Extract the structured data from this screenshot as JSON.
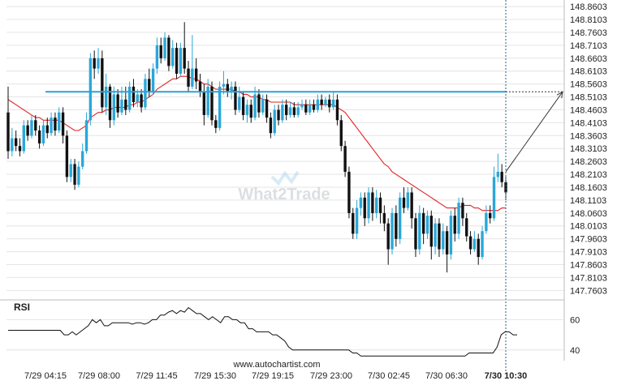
{
  "chart_data": {
    "type": "candlestick",
    "y_ticks": [
      "148.8603",
      "148.8103",
      "148.7603",
      "148.7103",
      "148.6603",
      "148.6103",
      "148.5603",
      "148.5103",
      "148.4603",
      "148.4103",
      "148.3603",
      "148.3103",
      "148.2603",
      "148.2103",
      "148.1603",
      "148.1103",
      "148.0603",
      "148.0103",
      "147.9603",
      "147.9103",
      "147.8603",
      "147.8103",
      "147.7603"
    ],
    "ylim": [
      147.73,
      148.87
    ],
    "x_tick_labels": [
      "7/29 04:15",
      "7/29 08:00",
      "7/29 11:45",
      "7/29 15:30",
      "7/29 19:15",
      "7/29 23:00",
      "7/30 02:45",
      "7/30 06:30",
      "7/30 10:30"
    ],
    "highlighted_x_label": "7/30 10:30",
    "resistance_level": 148.53,
    "projection": {
      "from": 148.22,
      "to": 148.53
    },
    "candles": [
      [
        148.45,
        148.3,
        148.55,
        148.27
      ],
      [
        148.3,
        148.35,
        148.39,
        148.28
      ],
      [
        148.35,
        148.32,
        148.38,
        148.3
      ],
      [
        148.32,
        148.3,
        148.35,
        148.28
      ],
      [
        148.3,
        148.4,
        148.42,
        148.29
      ],
      [
        148.4,
        148.36,
        148.42,
        148.34
      ],
      [
        148.36,
        148.42,
        148.44,
        148.35
      ],
      [
        148.42,
        148.38,
        148.44,
        148.36
      ],
      [
        148.38,
        148.33,
        148.4,
        148.31
      ],
      [
        148.33,
        148.4,
        148.42,
        148.32
      ],
      [
        148.4,
        148.37,
        148.43,
        148.35
      ],
      [
        148.37,
        148.43,
        148.45,
        148.36
      ],
      [
        148.43,
        148.38,
        148.45,
        148.36
      ],
      [
        148.38,
        148.45,
        148.47,
        148.37
      ],
      [
        148.45,
        148.36,
        148.47,
        148.33
      ],
      [
        148.36,
        148.2,
        148.38,
        148.18
      ],
      [
        148.2,
        148.25,
        148.27,
        148.18
      ],
      [
        148.25,
        148.17,
        148.27,
        148.15
      ],
      [
        148.17,
        148.24,
        148.26,
        148.16
      ],
      [
        148.24,
        148.3,
        148.33,
        148.23
      ],
      [
        148.3,
        148.42,
        148.45,
        148.29
      ],
      [
        148.42,
        148.66,
        148.68,
        148.4
      ],
      [
        148.66,
        148.62,
        148.69,
        148.58
      ],
      [
        148.62,
        148.66,
        148.7,
        148.6
      ],
      [
        148.66,
        148.47,
        148.69,
        148.45
      ],
      [
        148.47,
        148.55,
        148.6,
        148.44
      ],
      [
        148.55,
        148.42,
        148.56,
        148.39
      ],
      [
        148.42,
        148.52,
        148.55,
        148.4
      ],
      [
        148.52,
        148.45,
        148.54,
        148.43
      ],
      [
        148.45,
        148.5,
        148.55,
        148.44
      ],
      [
        148.5,
        148.46,
        148.55,
        148.44
      ],
      [
        148.46,
        148.55,
        148.57,
        148.45
      ],
      [
        148.55,
        148.49,
        148.58,
        148.47
      ],
      [
        148.49,
        148.52,
        148.54,
        148.47
      ],
      [
        148.52,
        148.47,
        148.54,
        148.45
      ],
      [
        148.47,
        148.58,
        148.6,
        148.46
      ],
      [
        148.58,
        148.53,
        148.62,
        148.51
      ],
      [
        148.53,
        148.62,
        148.64,
        148.52
      ],
      [
        148.62,
        148.71,
        148.74,
        148.6
      ],
      [
        148.71,
        148.66,
        148.74,
        148.64
      ],
      [
        148.66,
        148.74,
        148.76,
        148.65
      ],
      [
        148.74,
        148.63,
        148.75,
        148.61
      ],
      [
        148.63,
        148.7,
        148.73,
        148.62
      ],
      [
        148.7,
        148.6,
        148.72,
        148.58
      ],
      [
        148.6,
        148.7,
        148.72,
        148.59
      ],
      [
        148.7,
        148.62,
        148.8,
        148.6
      ],
      [
        148.62,
        148.55,
        148.65,
        148.53
      ],
      [
        148.55,
        148.62,
        148.75,
        148.54
      ],
      [
        148.62,
        148.57,
        148.66,
        148.54
      ],
      [
        148.57,
        148.53,
        148.6,
        148.51
      ],
      [
        148.53,
        148.44,
        148.56,
        148.4
      ],
      [
        148.44,
        148.55,
        148.58,
        148.43
      ],
      [
        148.55,
        148.42,
        148.57,
        148.4
      ],
      [
        148.42,
        148.39,
        148.44,
        148.37
      ],
      [
        148.39,
        148.55,
        148.57,
        148.38
      ],
      [
        148.55,
        148.56,
        148.61,
        148.52
      ],
      [
        148.56,
        148.53,
        148.58,
        148.51
      ],
      [
        148.53,
        148.55,
        148.57,
        148.5
      ],
      [
        148.55,
        148.46,
        148.57,
        148.44
      ],
      [
        148.46,
        148.51,
        148.55,
        148.45
      ],
      [
        148.51,
        148.44,
        148.53,
        148.42
      ],
      [
        148.44,
        148.48,
        148.5,
        148.41
      ],
      [
        148.48,
        148.43,
        148.5,
        148.41
      ],
      [
        148.43,
        148.52,
        148.55,
        148.42
      ],
      [
        148.52,
        148.45,
        148.54,
        148.43
      ],
      [
        148.45,
        148.5,
        148.52,
        148.44
      ],
      [
        148.5,
        148.43,
        148.52,
        148.41
      ],
      [
        148.43,
        148.37,
        148.45,
        148.35
      ],
      [
        148.37,
        148.46,
        148.48,
        148.36
      ],
      [
        148.46,
        148.42,
        148.48,
        148.4
      ],
      [
        148.42,
        148.48,
        148.5,
        148.41
      ],
      [
        148.48,
        148.44,
        148.5,
        148.42
      ],
      [
        148.44,
        148.47,
        148.49,
        148.43
      ],
      [
        148.47,
        148.44,
        148.49,
        148.43
      ],
      [
        148.44,
        148.47,
        148.49,
        148.43
      ],
      [
        148.47,
        148.48,
        148.5,
        148.46
      ],
      [
        148.48,
        148.45,
        148.5,
        148.44
      ],
      [
        148.45,
        148.48,
        148.5,
        148.44
      ],
      [
        148.48,
        148.46,
        148.5,
        148.45
      ],
      [
        148.46,
        148.5,
        148.52,
        148.45
      ],
      [
        148.5,
        148.48,
        148.52,
        148.46
      ],
      [
        148.48,
        148.5,
        148.51,
        148.47
      ],
      [
        148.5,
        148.47,
        148.52,
        148.45
      ],
      [
        148.47,
        148.5,
        148.53,
        148.46
      ],
      [
        148.5,
        148.42,
        148.52,
        148.4
      ],
      [
        148.42,
        148.32,
        148.44,
        148.3
      ],
      [
        148.32,
        148.22,
        148.34,
        148.2
      ],
      [
        148.22,
        148.06,
        148.24,
        148.04
      ],
      [
        148.06,
        147.98,
        148.08,
        147.96
      ],
      [
        147.98,
        148.08,
        148.11,
        147.96
      ],
      [
        148.08,
        148.12,
        148.14,
        148.05
      ],
      [
        148.12,
        148.04,
        148.14,
        148.01
      ],
      [
        148.04,
        148.14,
        148.16,
        148.02
      ],
      [
        148.14,
        148.06,
        148.16,
        148.03
      ],
      [
        148.06,
        148.12,
        148.15,
        148.04
      ],
      [
        148.12,
        148.06,
        148.14,
        148.02
      ],
      [
        148.06,
        148.02,
        148.09,
        147.99
      ],
      [
        148.02,
        147.92,
        148.04,
        147.86
      ],
      [
        147.92,
        148.06,
        148.08,
        147.9
      ],
      [
        148.06,
        147.96,
        148.09,
        147.93
      ],
      [
        147.96,
        148.12,
        148.14,
        147.94
      ],
      [
        148.12,
        148.08,
        148.16,
        148.06
      ],
      [
        148.08,
        148.14,
        148.16,
        148.07
      ],
      [
        148.14,
        148.04,
        148.16,
        148.0
      ],
      [
        148.04,
        147.92,
        148.06,
        147.89
      ],
      [
        147.92,
        148.06,
        148.09,
        147.9
      ],
      [
        148.06,
        147.98,
        148.08,
        147.94
      ],
      [
        147.98,
        148.05,
        148.07,
        147.96
      ],
      [
        148.05,
        147.93,
        148.07,
        147.88
      ],
      [
        147.93,
        148.02,
        148.04,
        147.9
      ],
      [
        148.02,
        147.92,
        148.04,
        147.89
      ],
      [
        147.92,
        147.99,
        148.02,
        147.9
      ],
      [
        147.99,
        147.9,
        148.01,
        147.83
      ],
      [
        147.9,
        148.05,
        148.07,
        147.88
      ],
      [
        148.05,
        147.98,
        148.08,
        147.95
      ],
      [
        147.98,
        148.1,
        148.12,
        147.96
      ],
      [
        148.1,
        148.04,
        148.12,
        148.01
      ],
      [
        148.04,
        147.97,
        148.06,
        147.95
      ],
      [
        147.97,
        147.92,
        147.99,
        147.9
      ],
      [
        147.92,
        147.96,
        147.99,
        147.91
      ],
      [
        147.96,
        147.89,
        147.98,
        147.86
      ],
      [
        147.89,
        147.99,
        148.01,
        147.88
      ],
      [
        147.99,
        148.06,
        148.09,
        147.98
      ],
      [
        148.06,
        148.04,
        148.09,
        148.02
      ],
      [
        148.04,
        148.2,
        148.24,
        148.03
      ],
      [
        148.2,
        148.22,
        148.29,
        148.18
      ],
      [
        148.22,
        148.18,
        148.25,
        148.16
      ],
      [
        148.18,
        148.14,
        148.2,
        148.11
      ]
    ],
    "ma": [
      148.5,
      148.49,
      148.48,
      148.47,
      148.46,
      148.45,
      148.44,
      148.43,
      148.43,
      148.42,
      148.42,
      148.42,
      148.42,
      148.42,
      148.41,
      148.4,
      148.39,
      148.38,
      148.38,
      148.39,
      148.4,
      148.43,
      148.44,
      148.45,
      148.45,
      148.46,
      148.46,
      148.47,
      148.47,
      148.47,
      148.47,
      148.48,
      148.48,
      148.49,
      148.49,
      148.5,
      148.51,
      148.52,
      148.54,
      148.55,
      148.56,
      148.57,
      148.58,
      148.58,
      148.59,
      148.59,
      148.59,
      148.58,
      148.58,
      148.57,
      148.56,
      148.56,
      148.55,
      148.54,
      148.54,
      148.54,
      148.54,
      148.54,
      148.53,
      148.53,
      148.52,
      148.52,
      148.51,
      148.51,
      148.51,
      148.5,
      148.5,
      148.49,
      148.49,
      148.49,
      148.49,
      148.49,
      148.49,
      148.48,
      148.48,
      148.48,
      148.48,
      148.48,
      148.48,
      148.48,
      148.48,
      148.48,
      148.48,
      148.48,
      148.47,
      148.46,
      148.45,
      148.43,
      148.41,
      148.39,
      148.37,
      148.35,
      148.33,
      148.31,
      148.29,
      148.27,
      148.25,
      148.24,
      148.22,
      148.21,
      148.2,
      148.19,
      148.18,
      148.17,
      148.16,
      148.15,
      148.14,
      148.13,
      148.12,
      148.11,
      148.1,
      148.09,
      148.08,
      148.08,
      148.08,
      148.08,
      148.09,
      148.09,
      148.09,
      148.08,
      148.08,
      148.07,
      148.07,
      148.07,
      148.07,
      148.07,
      148.08,
      148.08
    ],
    "rsi": {
      "title": "RSI",
      "y_ticks": [
        "60",
        "40"
      ],
      "ylim": [
        34,
        72
      ],
      "values": [
        53,
        53,
        53,
        53,
        53,
        53,
        53,
        53,
        53,
        53,
        53,
        53,
        53,
        53,
        50,
        50,
        52,
        50,
        52,
        54,
        56,
        60,
        58,
        60,
        56,
        56,
        58,
        58,
        58,
        58,
        58,
        57,
        58,
        58,
        57,
        58,
        60,
        60,
        63,
        63,
        65,
        66,
        64,
        66,
        65,
        68,
        66,
        64,
        64,
        62,
        60,
        62,
        60,
        58,
        62,
        62,
        60,
        60,
        58,
        58,
        54,
        54,
        52,
        52,
        52,
        52,
        50,
        50,
        48,
        46,
        42,
        40,
        40,
        40,
        40,
        40,
        40,
        40,
        40,
        40,
        40,
        40,
        40,
        40,
        40,
        40,
        38,
        38,
        36,
        36,
        36,
        36,
        36,
        36,
        36,
        36,
        36,
        36,
        36,
        36,
        36,
        36,
        36,
        36,
        36,
        36,
        36,
        36,
        36,
        36,
        36,
        36,
        36,
        36,
        36,
        38,
        38,
        38,
        38,
        38,
        38,
        38,
        42,
        50,
        52,
        52,
        50,
        50
      ]
    }
  },
  "watermark": "What2Trade",
  "footer": {
    "source": "www.autochartist.com"
  },
  "colors": {
    "bull": "#2aa7d9",
    "bear": "#111111",
    "ma": "#e32222",
    "resistance": "#29a3d6",
    "grid": "#e4e4e4",
    "text": "#222222",
    "axis": "#bbbbbb"
  }
}
